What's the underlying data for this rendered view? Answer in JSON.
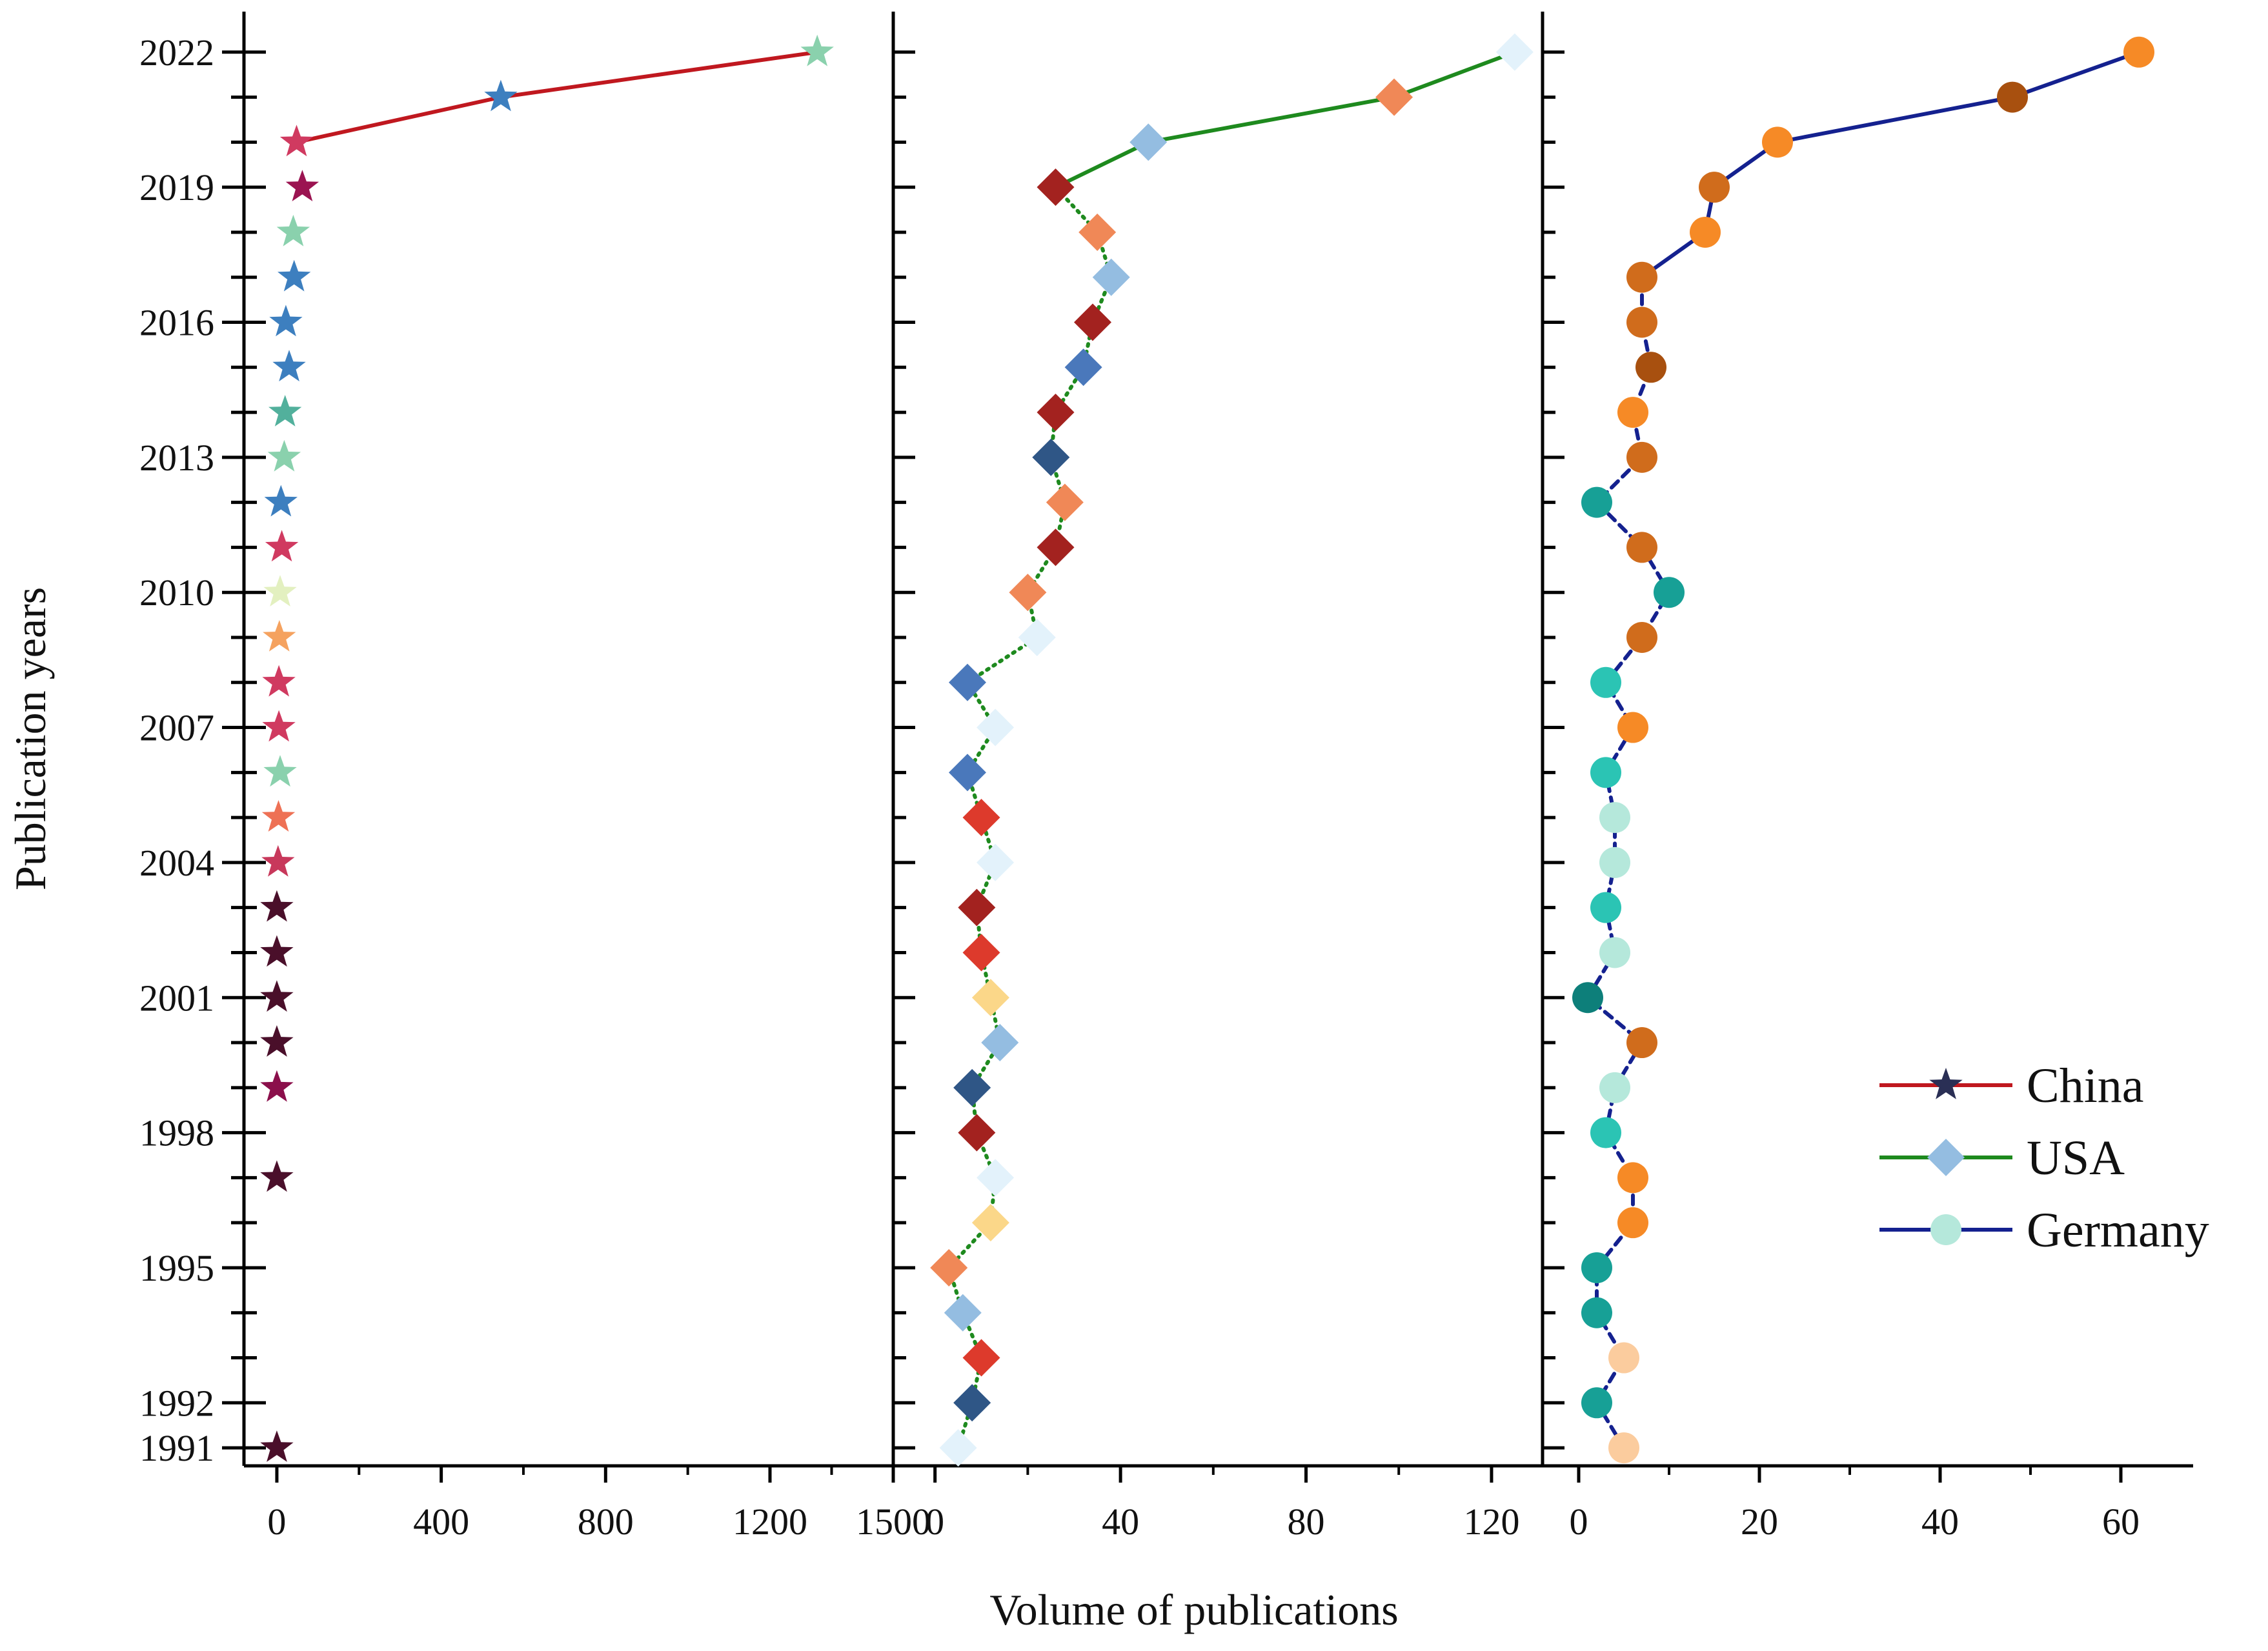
{
  "chart_data": {
    "type": "line",
    "ylabel": "Publication years",
    "xlabel": "Volume of publications",
    "ylim": [
      1990.6,
      2022.9
    ],
    "y_ticks": [
      1991,
      1992,
      1995,
      1998,
      2001,
      2004,
      2007,
      2010,
      2013,
      2016,
      2019,
      2022
    ],
    "y_tick_labels": [
      "1991",
      "1992",
      "1995",
      "1998",
      "2001",
      "2004",
      "2007",
      "2010",
      "2013",
      "2016",
      "2019",
      "2022"
    ],
    "panels": [
      {
        "name": "China",
        "marker": "star",
        "line_color": "#c0181f",
        "xlim": [
          -80,
          1500
        ],
        "x_ticks": [
          0,
          400,
          800,
          1200,
          1500
        ],
        "x_tick_labels": [
          "0",
          "400",
          "800",
          "1200",
          "1500"
        ],
        "points": [
          {
            "year": 1991,
            "value": 0,
            "color": "#4a0f2a"
          },
          {
            "year": 1997,
            "value": 0,
            "color": "#4a0f2a"
          },
          {
            "year": 1999,
            "value": 0,
            "color": "#8b0f4b"
          },
          {
            "year": 2000,
            "value": 0,
            "color": "#4a0f2a"
          },
          {
            "year": 2001,
            "value": 0,
            "color": "#4a0f2a"
          },
          {
            "year": 2002,
            "value": 0,
            "color": "#4a0f2a"
          },
          {
            "year": 2003,
            "value": 0,
            "color": "#4a0f2a"
          },
          {
            "year": 2004,
            "value": 3,
            "color": "#c8385b"
          },
          {
            "year": 2005,
            "value": 4,
            "color": "#ee7155"
          },
          {
            "year": 2006,
            "value": 8,
            "color": "#8ad1ad"
          },
          {
            "year": 2007,
            "value": 5,
            "color": "#d03a60"
          },
          {
            "year": 2008,
            "value": 5,
            "color": "#d03a60"
          },
          {
            "year": 2009,
            "value": 6,
            "color": "#f5a25f"
          },
          {
            "year": 2010,
            "value": 8,
            "color": "#e3f0c0"
          },
          {
            "year": 2011,
            "value": 12,
            "color": "#d03a60"
          },
          {
            "year": 2012,
            "value": 10,
            "color": "#3d7fbf"
          },
          {
            "year": 2013,
            "value": 18,
            "color": "#8ad1ad"
          },
          {
            "year": 2014,
            "value": 20,
            "color": "#52b09c"
          },
          {
            "year": 2015,
            "value": 30,
            "color": "#3d7fbf"
          },
          {
            "year": 2016,
            "value": 22,
            "color": "#3d7fbf"
          },
          {
            "year": 2017,
            "value": 42,
            "color": "#3d7fbf"
          },
          {
            "year": 2018,
            "value": 40,
            "color": "#8ad1ad"
          },
          {
            "year": 2019,
            "value": 62,
            "color": "#9b1451"
          },
          {
            "year": 2020,
            "value": 48,
            "color": "#d03a60"
          },
          {
            "year": 2021,
            "value": 545,
            "color": "#3d7fbf"
          },
          {
            "year": 2022,
            "value": 1315,
            "color": "#8ad1ad"
          }
        ],
        "lines": [
          {
            "from_year": 2020,
            "to_year": 2022,
            "style": "solid"
          }
        ]
      },
      {
        "name": "USA",
        "marker": "diamond",
        "line_color": "#1e8a1e",
        "xlim": [
          -9,
          131
        ],
        "x_ticks": [
          0,
          40,
          80,
          120
        ],
        "x_tick_labels": [
          "0",
          "40",
          "80",
          "120"
        ],
        "points": [
          {
            "year": 1991,
            "value": 5,
            "color": "#e3f2fb"
          },
          {
            "year": 1992,
            "value": 8,
            "color": "#2f5686"
          },
          {
            "year": 1993,
            "value": 10,
            "color": "#dd3a2c"
          },
          {
            "year": 1994,
            "value": 6,
            "color": "#94bde1"
          },
          {
            "year": 1995,
            "value": 3,
            "color": "#f08857"
          },
          {
            "year": 1996,
            "value": 12,
            "color": "#fbd789"
          },
          {
            "year": 1997,
            "value": 13,
            "color": "#e3f2fb"
          },
          {
            "year": 1998,
            "value": 9,
            "color": "#a3221f"
          },
          {
            "year": 1999,
            "value": 8,
            "color": "#2f5686"
          },
          {
            "year": 2000,
            "value": 14,
            "color": "#94bde1"
          },
          {
            "year": 2001,
            "value": 12,
            "color": "#fbd789"
          },
          {
            "year": 2002,
            "value": 10,
            "color": "#dd3a2c"
          },
          {
            "year": 2003,
            "value": 9,
            "color": "#a3221f"
          },
          {
            "year": 2004,
            "value": 13,
            "color": "#e3f2fb"
          },
          {
            "year": 2005,
            "value": 10,
            "color": "#dd3a2c"
          },
          {
            "year": 2006,
            "value": 7,
            "color": "#4a78bb"
          },
          {
            "year": 2007,
            "value": 13,
            "color": "#e3f2fb"
          },
          {
            "year": 2008,
            "value": 7,
            "color": "#4a78bb"
          },
          {
            "year": 2009,
            "value": 22,
            "color": "#e3f2fb"
          },
          {
            "year": 2010,
            "value": 20,
            "color": "#f08857"
          },
          {
            "year": 2011,
            "value": 26,
            "color": "#a3221f"
          },
          {
            "year": 2012,
            "value": 28,
            "color": "#f08857"
          },
          {
            "year": 2013,
            "value": 25,
            "color": "#2f5686"
          },
          {
            "year": 2014,
            "value": 26,
            "color": "#a3221f"
          },
          {
            "year": 2015,
            "value": 32,
            "color": "#4a78bb"
          },
          {
            "year": 2016,
            "value": 34,
            "color": "#a3221f"
          },
          {
            "year": 2017,
            "value": 38,
            "color": "#94bde1"
          },
          {
            "year": 2018,
            "value": 35,
            "color": "#f08857"
          },
          {
            "year": 2019,
            "value": 26,
            "color": "#a3221f"
          },
          {
            "year": 2020,
            "value": 46,
            "color": "#94bde1"
          },
          {
            "year": 2021,
            "value": 99,
            "color": "#f08857"
          },
          {
            "year": 2022,
            "value": 125,
            "color": "#e3f2fb"
          }
        ],
        "lines": [
          {
            "from_year": 1991,
            "to_year": 2019,
            "style": "dotted"
          },
          {
            "from_year": 2019,
            "to_year": 2022,
            "style": "solid"
          }
        ]
      },
      {
        "name": "Germany",
        "marker": "circle",
        "line_color": "#14218f",
        "xlim": [
          -4,
          68
        ],
        "x_ticks": [
          0,
          20,
          40,
          60
        ],
        "x_tick_labels": [
          "0",
          "20",
          "40",
          "60"
        ],
        "points": [
          {
            "year": 1991,
            "value": 5,
            "color": "#fbcc9e"
          },
          {
            "year": 1992,
            "value": 2,
            "color": "#17a096"
          },
          {
            "year": 1993,
            "value": 5,
            "color": "#fbcc9e"
          },
          {
            "year": 1994,
            "value": 2,
            "color": "#17a096"
          },
          {
            "year": 1995,
            "value": 2,
            "color": "#17a096"
          },
          {
            "year": 1996,
            "value": 6,
            "color": "#f68a26"
          },
          {
            "year": 1997,
            "value": 6,
            "color": "#f68a26"
          },
          {
            "year": 1998,
            "value": 3,
            "color": "#2bc4b4"
          },
          {
            "year": 1999,
            "value": 4,
            "color": "#b5e8db"
          },
          {
            "year": 2000,
            "value": 7,
            "color": "#d06c1c"
          },
          {
            "year": 2001,
            "value": 1,
            "color": "#0d7f7a"
          },
          {
            "year": 2002,
            "value": 4,
            "color": "#b5e8db"
          },
          {
            "year": 2003,
            "value": 3,
            "color": "#2bc4b4"
          },
          {
            "year": 2004,
            "value": 4,
            "color": "#b5e8db"
          },
          {
            "year": 2005,
            "value": 4,
            "color": "#b5e8db"
          },
          {
            "year": 2006,
            "value": 3,
            "color": "#2bc4b4"
          },
          {
            "year": 2007,
            "value": 6,
            "color": "#f68a26"
          },
          {
            "year": 2008,
            "value": 3,
            "color": "#2bc4b4"
          },
          {
            "year": 2009,
            "value": 7,
            "color": "#d06c1c"
          },
          {
            "year": 2010,
            "value": 10,
            "color": "#17a096"
          },
          {
            "year": 2011,
            "value": 7,
            "color": "#d06c1c"
          },
          {
            "year": 2012,
            "value": 2,
            "color": "#17a096"
          },
          {
            "year": 2013,
            "value": 7,
            "color": "#d06c1c"
          },
          {
            "year": 2014,
            "value": 6,
            "color": "#f68a26"
          },
          {
            "year": 2015,
            "value": 8,
            "color": "#a8500f"
          },
          {
            "year": 2016,
            "value": 7,
            "color": "#d06c1c"
          },
          {
            "year": 2017,
            "value": 7,
            "color": "#d06c1c"
          },
          {
            "year": 2018,
            "value": 14,
            "color": "#f68a26"
          },
          {
            "year": 2019,
            "value": 15,
            "color": "#d06c1c"
          },
          {
            "year": 2020,
            "value": 22,
            "color": "#f68a26"
          },
          {
            "year": 2021,
            "value": 48,
            "color": "#a8500f"
          },
          {
            "year": 2022,
            "value": 62,
            "color": "#f68a26"
          }
        ],
        "lines": [
          {
            "from_year": 1991,
            "to_year": 2017,
            "style": "dashed"
          },
          {
            "from_year": 2017,
            "to_year": 2022,
            "style": "solid"
          }
        ]
      }
    ],
    "legend": {
      "position": "lower-right",
      "entries": [
        {
          "label": "China",
          "marker": "star",
          "marker_color": "#2a2f55",
          "line_color": "#c0181f"
        },
        {
          "label": "USA",
          "marker": "diamond",
          "marker_color": "#94bde1",
          "line_color": "#1e8a1e"
        },
        {
          "label": "Germany",
          "marker": "circle",
          "marker_color": "#b5e8db",
          "line_color": "#14218f"
        }
      ]
    }
  }
}
